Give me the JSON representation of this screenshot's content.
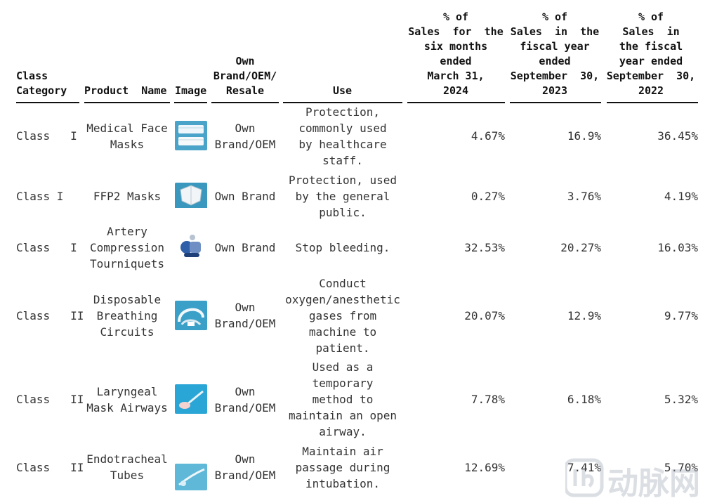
{
  "headers": {
    "class_category": [
      "Class",
      "Category"
    ],
    "product_name": [
      "Product  Name"
    ],
    "image": [
      "Image"
    ],
    "brand": [
      "Own",
      "Brand/OEM/",
      "Resale"
    ],
    "use": [
      "Use"
    ],
    "pct_six_months": [
      "% of",
      "Sales  for  the",
      "six months",
      "ended",
      "March 31,",
      "2024"
    ],
    "pct_fy2023": [
      "% of",
      "Sales  in  the",
      "fiscal year",
      "ended",
      "September  30,",
      "2023"
    ],
    "pct_fy2022": [
      "% of",
      "Sales  in",
      "the fiscal",
      "year ended",
      "September  30,",
      "2022"
    ]
  },
  "rows": [
    {
      "cls": "Class   I",
      "product": [
        "Medical Face",
        "Masks"
      ],
      "image_icon": "face-masks-image",
      "brand": [
        "Own",
        "Brand/OEM"
      ],
      "use": [
        "Protection,",
        "commonly used",
        "by healthcare",
        "staff."
      ],
      "p1": "4.67%",
      "p2": "16.9%",
      "p3": "36.45%"
    },
    {
      "cls": "Class I",
      "product": [
        "FFP2 Masks"
      ],
      "image_icon": "ffp2-mask-image",
      "brand": [
        "Own Brand"
      ],
      "use": [
        "Protection, used",
        "by the general",
        "public."
      ],
      "p1": "0.27%",
      "p2": "3.76%",
      "p3": "4.19%"
    },
    {
      "cls": "Class   I",
      "product": [
        "Artery",
        "Compression",
        "Tourniquets"
      ],
      "image_icon": "tourniquet-image",
      "brand": [
        "Own Brand"
      ],
      "use": [
        "Stop bleeding."
      ],
      "p1": "32.53%",
      "p2": "20.27%",
      "p3": "16.03%"
    },
    {
      "cls": "Class   II",
      "product": [
        "Disposable",
        "Breathing",
        "Circuits"
      ],
      "image_icon": "breathing-circuit-image",
      "brand": [
        "Own",
        "Brand/OEM"
      ],
      "use": [
        "Conduct",
        "oxygen/anesthetic",
        "gases from",
        "machine to",
        "patient."
      ],
      "p1": "20.07%",
      "p2": "12.9%",
      "p3": "9.77%"
    },
    {
      "cls": "Class   II",
      "product": [
        "Laryngeal",
        "Mask Airways"
      ],
      "image_icon": "laryngeal-mask-image",
      "brand": [
        "Own",
        "Brand/OEM"
      ],
      "use": [
        "Used as a",
        "temporary",
        "method to",
        "maintain an open",
        "airway."
      ],
      "p1": "7.78%",
      "p2": "6.18%",
      "p3": "5.32%"
    },
    {
      "cls": "Class   II",
      "product": [
        "Endotracheal",
        "Tubes"
      ],
      "image_icon": "endotracheal-tube-image",
      "brand": [
        "Own",
        "Brand/OEM"
      ],
      "use": [
        "Maintain air",
        "passage during",
        "intubation."
      ],
      "p1": "12.69%",
      "p2": "7.41%",
      "p3": "5.70%"
    }
  ],
  "watermark": {
    "text": "动脉网",
    "color": "#9aa4b2"
  }
}
